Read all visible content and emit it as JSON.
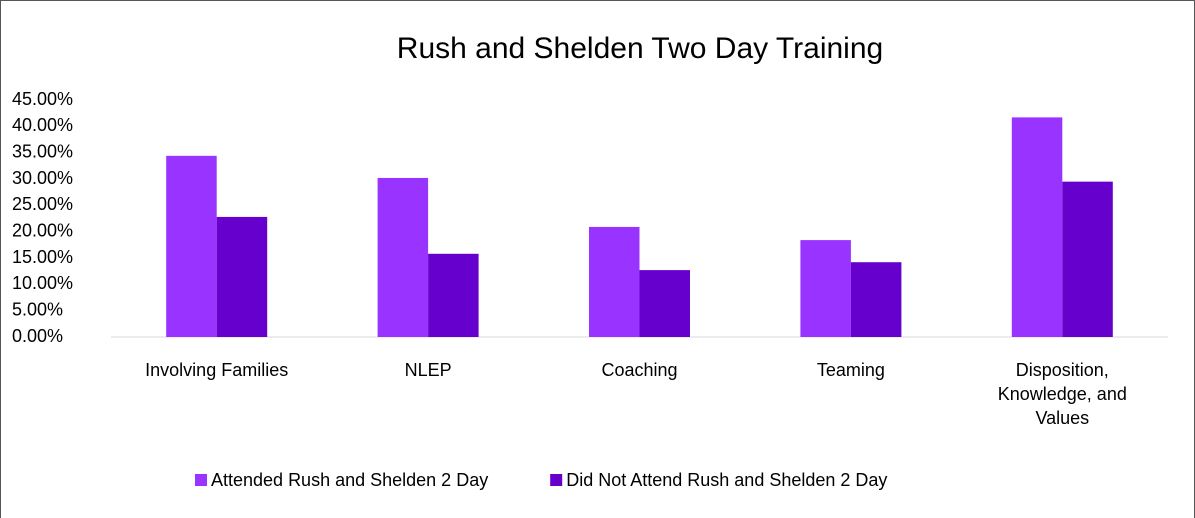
{
  "chart_data": {
    "type": "bar",
    "title": "Rush and Shelden Two Day Training",
    "categories": [
      "Involving Families",
      "NLEP",
      "Coaching",
      "Teaming",
      "Disposition, Knowledge, and Values"
    ],
    "series": [
      {
        "name": "Attended Rush and Shelden 2 Day",
        "color": "#9933ff",
        "values": [
          34.4,
          30.2,
          20.9,
          18.4,
          41.7
        ]
      },
      {
        "name": "Did Not Attend Rush and Shelden 2 Day",
        "color": "#6600cc",
        "values": [
          22.8,
          15.8,
          12.7,
          14.2,
          29.5
        ]
      }
    ],
    "ylim": [
      0,
      45
    ],
    "yticks": [
      {
        "value": 0,
        "label": "0.00%"
      },
      {
        "value": 5,
        "label": "5.00%"
      },
      {
        "value": 10,
        "label": "10.00%"
      },
      {
        "value": 15,
        "label": "15.00%"
      },
      {
        "value": 20,
        "label": "20.00%"
      },
      {
        "value": 25,
        "label": "25.00%"
      },
      {
        "value": 30,
        "label": "30.00%"
      },
      {
        "value": 35,
        "label": "35.00%"
      },
      {
        "value": 40,
        "label": "40.00%"
      },
      {
        "value": 45,
        "label": "45.00%"
      }
    ],
    "grid": false,
    "legend": "bottom"
  }
}
